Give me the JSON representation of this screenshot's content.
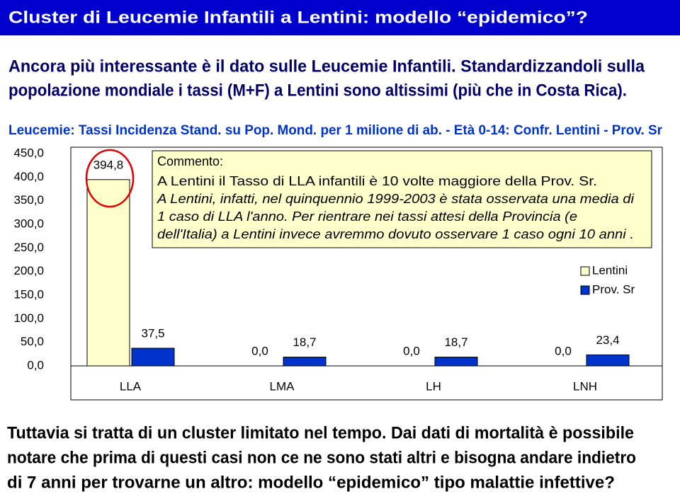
{
  "header": {
    "title": "Cluster di Leucemie Infantili a Lentini: modello “epidemico”?"
  },
  "intro": [
    "Ancora più interessante è il dato sulle Leucemie Infantili. Standardizzandoli sulla",
    "popolazione mondiale i tassi (M+F) a Lentini sono altissimi (più che in Costa Rica)."
  ],
  "chart_data": {
    "type": "bar",
    "title": "Leucemie: Tassi Incidenza Stand. su Pop. Mond. per 1 milione di ab. - Età 0-14: Confr. Lentini - Prov. Sr",
    "categories": [
      "LLA",
      "LMA",
      "LH",
      "LNH"
    ],
    "series": [
      {
        "name": "Lentini",
        "color": "#ffffcc",
        "values": [
          394.8,
          0,
          0,
          0
        ],
        "value_labels": [
          "394,8",
          "0,0",
          "0,0",
          "0,0"
        ]
      },
      {
        "name": "Prov. Sr",
        "color": "#0033cc",
        "values": [
          37.5,
          18.7,
          18.7,
          23.4
        ],
        "value_labels": [
          "37,5",
          "18,7",
          "18,7",
          "23,4"
        ]
      }
    ],
    "ylim": [
      0,
      450
    ],
    "yticks": [
      {
        "value": 0,
        "label": "0,0"
      },
      {
        "value": 50,
        "label": "50,0"
      },
      {
        "value": 100,
        "label": "100,0"
      },
      {
        "value": 150,
        "label": "150,0"
      },
      {
        "value": 200,
        "label": "200,0"
      },
      {
        "value": 250,
        "label": "250,0"
      },
      {
        "value": 300,
        "label": "300,0"
      },
      {
        "value": 350,
        "label": "350,0"
      },
      {
        "value": 400,
        "label": "400,0"
      },
      {
        "value": 450,
        "label": "450,0"
      }
    ],
    "grid": false,
    "legend": "right"
  },
  "comment": {
    "heading": "Commento:",
    "lines": [
      "A Lentini il Tasso di LLA infantili è 10 volte maggiore della Prov. Sr.",
      "A Lentini, infatti, nel quinquennio 1999-2003 è stata osservata una media di",
      "1 caso di LLA l'anno. Per rientrare nei tassi attesi della Provincia (e",
      "dell'Italia) a Lentini invece avremmo dovuto osservare 1 caso ogni 10 anni ."
    ]
  },
  "footer": [
    "Tuttavia si tratta di un cluster limitato nel tempo. Dai dati di mortalità è possibile",
    "notare che prima di questi casi non ce ne sono stati altri e bisogna andare indietro",
    "di 7 anni per trovarne un altro: modello “epidemico” tipo malattie infettive?"
  ]
}
